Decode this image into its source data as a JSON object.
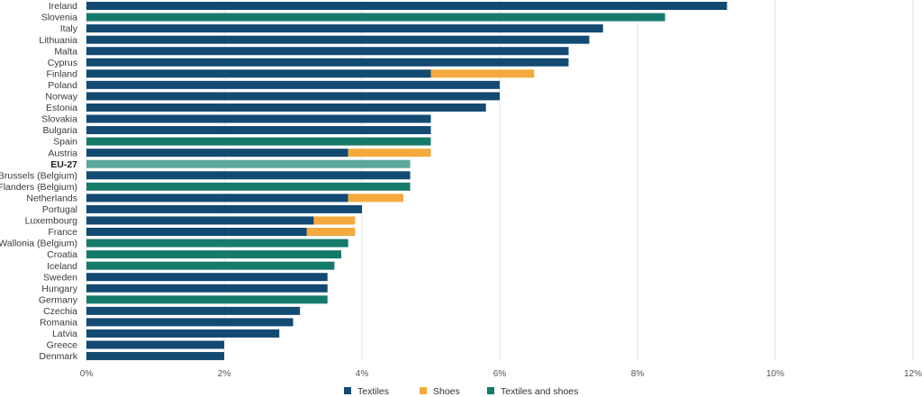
{
  "colors": {
    "textiles": "#124a72",
    "shoes": "#f4aa3c",
    "textiles_and_shoes": "#167a6b",
    "eu_highlight": "#5aa89b"
  },
  "chart_data": {
    "type": "bar",
    "orientation": "horizontal",
    "stacked": true,
    "categories": [
      "Ireland",
      "Slovenia",
      "Italy",
      "Lithuania",
      "Malta",
      "Cyprus",
      "Finland",
      "Poland",
      "Norway",
      "Estonia",
      "Slovakia",
      "Bulgaria",
      "Spain",
      "Austria",
      "EU-27",
      "Brussels (Belgium)",
      "Flanders (Belgium)",
      "Netherlands",
      "Portugal",
      "Luxembourg",
      "France",
      "Wallonia (Belgium)",
      "Croatia",
      "Iceland",
      "Sweden",
      "Hungary",
      "Germany",
      "Czechia",
      "Romania",
      "Latvia",
      "Greece",
      "Denmark"
    ],
    "highlight_category": "EU-27",
    "series": [
      {
        "name": "Textiles",
        "color_key": "textiles",
        "values": [
          9.3,
          0,
          7.5,
          7.3,
          7.0,
          7.0,
          5.0,
          6.0,
          6.0,
          5.8,
          5.0,
          5.0,
          0,
          3.8,
          0,
          4.7,
          0,
          3.8,
          4.0,
          3.3,
          3.2,
          0,
          0,
          0,
          3.5,
          3.5,
          0,
          3.1,
          3.0,
          2.8,
          2.0,
          2.0
        ]
      },
      {
        "name": "Shoes",
        "color_key": "shoes",
        "values": [
          0,
          0,
          0,
          0,
          0,
          0,
          1.5,
          0,
          0,
          0,
          0,
          0,
          0,
          1.2,
          0,
          0,
          0,
          0.8,
          0,
          0.6,
          0.7,
          0,
          0,
          0,
          0,
          0,
          0,
          0,
          0,
          0,
          0,
          0
        ]
      },
      {
        "name": "Textiles and shoes",
        "color_key": "textiles_and_shoes",
        "values": [
          0,
          8.4,
          0,
          0,
          0,
          0,
          0,
          0,
          0,
          0,
          0,
          0,
          5.0,
          0,
          4.7,
          0,
          4.7,
          0,
          0,
          0,
          0,
          3.8,
          3.7,
          3.6,
          0,
          0,
          3.5,
          0,
          0,
          0,
          0,
          0
        ]
      }
    ],
    "x_ticks": [
      "0%",
      "2%",
      "4%",
      "6%",
      "8%",
      "10%",
      "12%"
    ],
    "x_tick_values": [
      0,
      2,
      4,
      6,
      8,
      10,
      12
    ],
    "xlim": [
      0,
      12
    ],
    "grid": "vertical",
    "legend_position": "bottom"
  }
}
